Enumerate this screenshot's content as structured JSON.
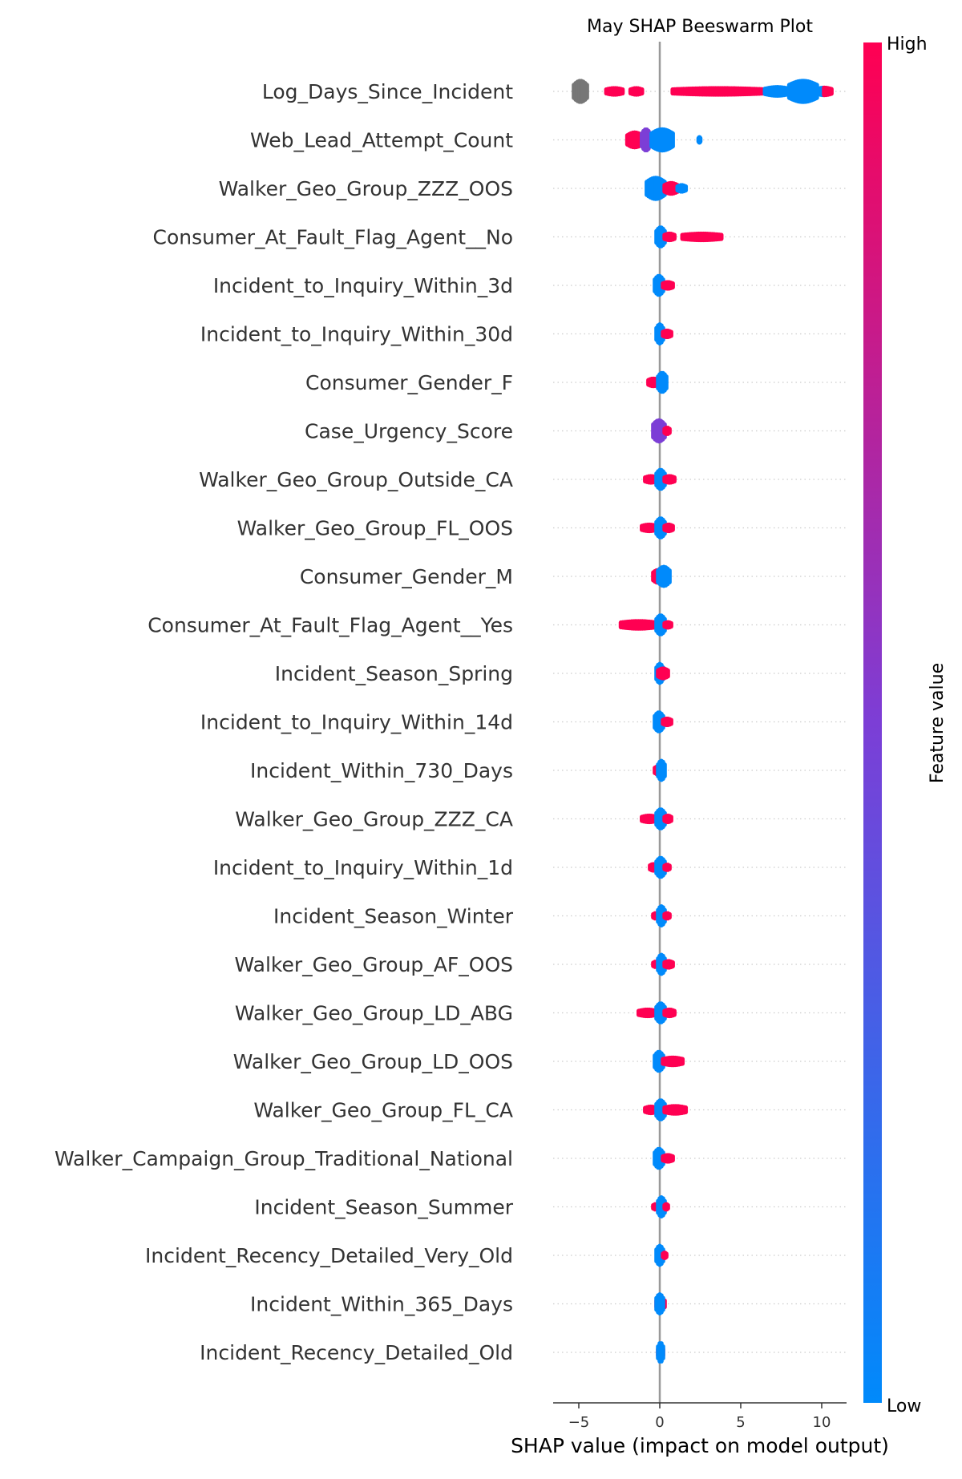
{
  "chart_data": {
    "type": "scatter",
    "subtype": "shap-beeswarm",
    "title": "May SHAP Beeswarm Plot",
    "xlabel": "SHAP value (impact on model output)",
    "xlim": [
      -6.6,
      11.6
    ],
    "xticks": [
      -5,
      0,
      5,
      10
    ],
    "xtick_labels": [
      "−5",
      "0",
      "5",
      "10"
    ],
    "colorbar": {
      "label": "Feature value",
      "high_label": "High",
      "low_label": "Low",
      "low_color": "#008afb",
      "mid_color": "#7c3ed6",
      "high_color": "#ff0052"
    },
    "missing_color": "#777777",
    "features": [
      {
        "name": "Log_Days_Since_Incident",
        "clusters": [
          {
            "from": -5.3,
            "to": -4.5,
            "color": "missing",
            "height": 1.0
          },
          {
            "from": -3.3,
            "to": -2.3,
            "color": "high",
            "height": 0.3
          },
          {
            "from": -1.8,
            "to": -1.1,
            "color": "high",
            "height": 0.3
          },
          {
            "from": 0.8,
            "to": 6.5,
            "color": "high",
            "height": 0.3
          },
          {
            "from": 6.5,
            "to": 8.0,
            "color": "low",
            "height": 0.4
          },
          {
            "from": 8.0,
            "to": 9.7,
            "color": "low",
            "height": 1.0
          },
          {
            "from": 9.7,
            "to": 10.6,
            "color": "mix",
            "height": 0.35
          }
        ]
      },
      {
        "name": "Web_Lead_Attempt_Count",
        "clusters": [
          {
            "from": -2.0,
            "to": -1.1,
            "color": "high",
            "height": 0.7
          },
          {
            "from": -1.1,
            "to": -0.6,
            "color": "mid",
            "height": 1.0
          },
          {
            "from": -0.5,
            "to": 0.8,
            "color": "low",
            "height": 1.0
          },
          {
            "from": 2.4,
            "to": 2.5,
            "color": "low",
            "height": 0.25
          }
        ]
      },
      {
        "name": "Walker_Geo_Group_ZZZ_OOS",
        "clusters": [
          {
            "from": -0.8,
            "to": 0.3,
            "color": "low",
            "height": 1.0
          },
          {
            "from": 0.3,
            "to": 1.1,
            "color": "high",
            "height": 0.5
          },
          {
            "from": 1.1,
            "to": 1.6,
            "color": "low",
            "height": 0.3
          }
        ]
      },
      {
        "name": "Consumer_At_Fault_Flag_Agent__No",
        "clusters": [
          {
            "from": -0.2,
            "to": 0.3,
            "color": "low",
            "height": 0.9
          },
          {
            "from": 0.3,
            "to": 0.9,
            "color": "high",
            "height": 0.3
          },
          {
            "from": 1.4,
            "to": 3.8,
            "color": "high",
            "height": 0.3
          }
        ]
      },
      {
        "name": "Incident_to_Inquiry_Within_3d",
        "clusters": [
          {
            "from": -0.3,
            "to": 0.2,
            "color": "low",
            "height": 0.9
          },
          {
            "from": 0.2,
            "to": 0.8,
            "color": "high",
            "height": 0.3
          }
        ]
      },
      {
        "name": "Incident_to_Inquiry_Within_30d",
        "clusters": [
          {
            "from": -0.2,
            "to": 0.2,
            "color": "low",
            "height": 0.9
          },
          {
            "from": 0.2,
            "to": 0.7,
            "color": "high",
            "height": 0.3
          }
        ]
      },
      {
        "name": "Consumer_Gender_F",
        "clusters": [
          {
            "from": -0.7,
            "to": -0.1,
            "color": "high",
            "height": 0.35
          },
          {
            "from": -0.1,
            "to": 0.4,
            "color": "low",
            "height": 0.9
          }
        ]
      },
      {
        "name": "Case_Urgency_Score",
        "clusters": [
          {
            "from": -0.4,
            "to": 0.3,
            "color": "mid",
            "height": 1.0
          },
          {
            "from": 0.3,
            "to": 0.6,
            "color": "high",
            "height": 0.3
          }
        ]
      },
      {
        "name": "Walker_Geo_Group_Outside_CA",
        "clusters": [
          {
            "from": -0.9,
            "to": -0.2,
            "color": "high",
            "height": 0.3
          },
          {
            "from": -0.2,
            "to": 0.3,
            "color": "low",
            "height": 0.9
          },
          {
            "from": 0.3,
            "to": 0.9,
            "color": "high",
            "height": 0.3
          }
        ]
      },
      {
        "name": "Walker_Geo_Group_FL_OOS",
        "clusters": [
          {
            "from": -1.1,
            "to": -0.2,
            "color": "high",
            "height": 0.3
          },
          {
            "from": -0.2,
            "to": 0.3,
            "color": "low",
            "height": 0.9
          },
          {
            "from": 0.3,
            "to": 0.8,
            "color": "high",
            "height": 0.3
          }
        ]
      },
      {
        "name": "Consumer_Gender_M",
        "clusters": [
          {
            "from": -0.4,
            "to": 0.2,
            "color": "high",
            "height": 0.6
          },
          {
            "from": -0.1,
            "to": 0.6,
            "color": "low",
            "height": 0.9
          }
        ]
      },
      {
        "name": "Consumer_At_Fault_Flag_Agent__Yes",
        "clusters": [
          {
            "from": -2.4,
            "to": -0.2,
            "color": "high",
            "height": 0.35
          },
          {
            "from": -0.2,
            "to": 0.3,
            "color": "low",
            "height": 0.9
          },
          {
            "from": 0.3,
            "to": 0.7,
            "color": "high",
            "height": 0.25
          }
        ]
      },
      {
        "name": "Incident_Season_Spring",
        "clusters": [
          {
            "from": -0.2,
            "to": 0.2,
            "color": "low",
            "height": 0.9
          },
          {
            "from": -0.1,
            "to": 0.5,
            "color": "high",
            "height": 0.45
          }
        ]
      },
      {
        "name": "Incident_to_Inquiry_Within_14d",
        "clusters": [
          {
            "from": -0.3,
            "to": 0.2,
            "color": "low",
            "height": 0.9
          },
          {
            "from": 0.2,
            "to": 0.7,
            "color": "high",
            "height": 0.3
          }
        ]
      },
      {
        "name": "Incident_Within_730_Days",
        "clusters": [
          {
            "from": -0.3,
            "to": 0.2,
            "color": "high",
            "height": 0.4
          },
          {
            "from": -0.1,
            "to": 0.3,
            "color": "low",
            "height": 0.9
          }
        ]
      },
      {
        "name": "Walker_Geo_Group_ZZZ_CA",
        "clusters": [
          {
            "from": -1.1,
            "to": -0.2,
            "color": "high",
            "height": 0.3
          },
          {
            "from": -0.2,
            "to": 0.3,
            "color": "low",
            "height": 0.9
          },
          {
            "from": 0.3,
            "to": 0.7,
            "color": "high",
            "height": 0.3
          }
        ]
      },
      {
        "name": "Incident_to_Inquiry_Within_1d",
        "clusters": [
          {
            "from": -0.6,
            "to": -0.2,
            "color": "high",
            "height": 0.3
          },
          {
            "from": -0.2,
            "to": 0.3,
            "color": "low",
            "height": 0.9
          },
          {
            "from": 0.3,
            "to": 0.6,
            "color": "high",
            "height": 0.25
          }
        ]
      },
      {
        "name": "Incident_Season_Winter",
        "clusters": [
          {
            "from": -0.4,
            "to": -0.1,
            "color": "high",
            "height": 0.25
          },
          {
            "from": -0.1,
            "to": 0.3,
            "color": "low",
            "height": 0.9
          },
          {
            "from": 0.3,
            "to": 0.6,
            "color": "high",
            "height": 0.25
          }
        ]
      },
      {
        "name": "Walker_Geo_Group_AF_OOS",
        "clusters": [
          {
            "from": -0.4,
            "to": -0.1,
            "color": "high",
            "height": 0.25
          },
          {
            "from": -0.1,
            "to": 0.3,
            "color": "low",
            "height": 0.9
          },
          {
            "from": 0.3,
            "to": 0.8,
            "color": "high",
            "height": 0.3
          }
        ]
      },
      {
        "name": "Walker_Geo_Group_LD_ABG",
        "clusters": [
          {
            "from": -1.3,
            "to": -0.2,
            "color": "high",
            "height": 0.3
          },
          {
            "from": -0.2,
            "to": 0.3,
            "color": "low",
            "height": 0.9
          },
          {
            "from": 0.3,
            "to": 0.9,
            "color": "high",
            "height": 0.3
          }
        ]
      },
      {
        "name": "Walker_Geo_Group_LD_OOS",
        "clusters": [
          {
            "from": -0.3,
            "to": 0.2,
            "color": "low",
            "height": 0.9
          },
          {
            "from": 0.2,
            "to": 1.4,
            "color": "high",
            "height": 0.35
          }
        ]
      },
      {
        "name": "Walker_Geo_Group_FL_CA",
        "clusters": [
          {
            "from": -0.9,
            "to": -0.2,
            "color": "high",
            "height": 0.3
          },
          {
            "from": -0.2,
            "to": 0.3,
            "color": "low",
            "height": 0.9
          },
          {
            "from": 0.3,
            "to": 1.6,
            "color": "high",
            "height": 0.35
          }
        ]
      },
      {
        "name": "Walker_Campaign_Group_Traditional_National",
        "clusters": [
          {
            "from": -0.3,
            "to": 0.2,
            "color": "low",
            "height": 0.9
          },
          {
            "from": 0.2,
            "to": 0.8,
            "color": "high",
            "height": 0.3
          }
        ]
      },
      {
        "name": "Incident_Season_Summer",
        "clusters": [
          {
            "from": -0.4,
            "to": -0.1,
            "color": "high",
            "height": 0.25
          },
          {
            "from": -0.1,
            "to": 0.3,
            "color": "low",
            "height": 0.9
          },
          {
            "from": 0.3,
            "to": 0.5,
            "color": "high",
            "height": 0.25
          }
        ]
      },
      {
        "name": "Incident_Recency_Detailed_Very_Old",
        "clusters": [
          {
            "from": -0.2,
            "to": 0.2,
            "color": "low",
            "height": 0.9
          },
          {
            "from": 0.2,
            "to": 0.4,
            "color": "high",
            "height": 0.25
          }
        ]
      },
      {
        "name": "Incident_Within_365_Days",
        "clusters": [
          {
            "from": -0.2,
            "to": 0.3,
            "color": "high",
            "height": 0.5
          },
          {
            "from": -0.2,
            "to": 0.2,
            "color": "low",
            "height": 0.9
          }
        ]
      },
      {
        "name": "Incident_Recency_Detailed_Old",
        "clusters": [
          {
            "from": -0.1,
            "to": 0.2,
            "color": "high",
            "height": 0.5
          },
          {
            "from": -0.1,
            "to": 0.2,
            "color": "low",
            "height": 0.9
          }
        ]
      }
    ]
  }
}
